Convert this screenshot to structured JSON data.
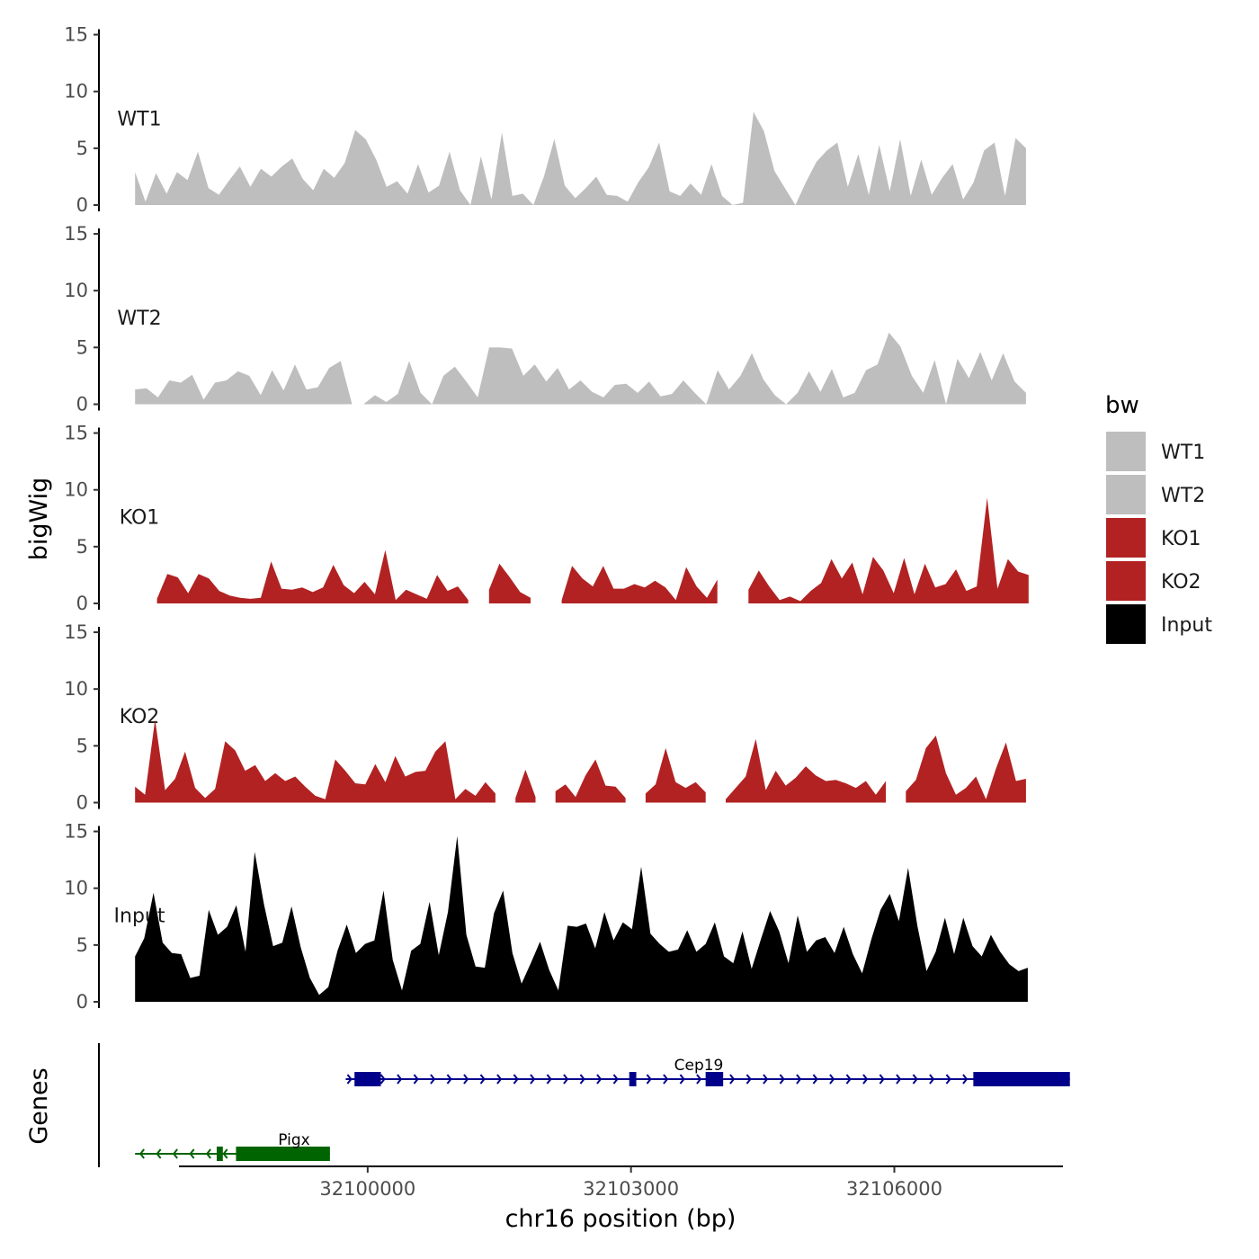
{
  "chart_data": {
    "type": "area",
    "ylabel": "bigWig",
    "xlabel": "chr16 position (bp)",
    "ylim": [
      0,
      15
    ],
    "yticks": [
      "0",
      "5",
      "10",
      "15"
    ],
    "x_range": [
      32096800,
      32108800
    ],
    "xticks": [
      {
        "value": 32100000,
        "label": "32100000"
      },
      {
        "value": 32103000,
        "label": "32103000"
      },
      {
        "value": 32106000,
        "label": "32106000"
      }
    ],
    "legend": {
      "title": "bw",
      "entries": [
        {
          "label": "WT1",
          "color": "#bebebe"
        },
        {
          "label": "WT2",
          "color": "#bebebe"
        },
        {
          "label": "KO1",
          "color": "#b22222"
        },
        {
          "label": "KO2",
          "color": "#b22222"
        },
        {
          "label": "Input",
          "color": "#000000"
        }
      ]
    },
    "tracks": [
      {
        "name": "WT1",
        "color": "#bebebe",
        "start": 32097350,
        "end": 32107500,
        "values": [
          2.9,
          0.3,
          2.8,
          1.0,
          2.9,
          2.2,
          4.7,
          1.5,
          0.9,
          2.2,
          3.4,
          1.6,
          3.2,
          2.5,
          3.4,
          4.1,
          2.3,
          1.3,
          3.2,
          2.4,
          3.7,
          6.6,
          5.8,
          4.0,
          1.6,
          2.1,
          1.0,
          3.6,
          1.1,
          1.7,
          4.7,
          1.3,
          0.0,
          4.3,
          0.5,
          6.4,
          0.8,
          1.0,
          0.0,
          2.5,
          5.8,
          1.7,
          0.6,
          1.5,
          2.5,
          0.9,
          0.8,
          0.3,
          2.0,
          3.3,
          5.5,
          1.2,
          0.8,
          1.9,
          0.9,
          3.6,
          0.8,
          0.0,
          0.2,
          8.2,
          6.5,
          3.0,
          1.5,
          0.0,
          2.0,
          3.8,
          4.8,
          5.5,
          1.6,
          4.5,
          0.9,
          5.3,
          1.2,
          5.8,
          0.8,
          4.0,
          0.9,
          2.4,
          3.6,
          0.5,
          2.0,
          4.8,
          5.5,
          0.8,
          5.9,
          5.0
        ]
      },
      {
        "name": "WT2",
        "color": "#bebebe",
        "start": 32097350,
        "end": 32107500,
        "values": [
          1.3,
          1.4,
          0.6,
          2.1,
          1.9,
          2.6,
          0.4,
          1.9,
          2.1,
          2.9,
          2.5,
          0.8,
          3.0,
          1.2,
          3.5,
          1.3,
          1.5,
          3.2,
          3.8,
          0.0,
          0.0,
          0.8,
          0.2,
          0.9,
          3.8,
          1.0,
          0.0,
          2.5,
          3.3,
          2.0,
          0.6,
          5.0,
          5.0,
          4.9,
          2.5,
          3.5,
          2.0,
          3.2,
          1.3,
          2.1,
          1.1,
          0.6,
          1.7,
          1.8,
          1.0,
          2.0,
          0.7,
          0.9,
          2.1,
          1.0,
          0.0,
          3.0,
          1.3,
          2.5,
          4.5,
          2.2,
          0.8,
          0.0,
          1.0,
          2.9,
          1.1,
          3.1,
          0.6,
          1.0,
          3.0,
          3.5,
          6.3,
          5.1,
          2.5,
          1.0,
          3.9,
          0.0,
          4.0,
          2.3,
          4.6,
          2.1,
          4.5,
          2.0,
          1.0
        ]
      },
      {
        "name": "KO1",
        "color": "#b22222",
        "start": 32097600,
        "end": 32107530,
        "values": [
          0.4,
          2.6,
          2.3,
          0.9,
          2.6,
          2.2,
          1.1,
          0.7,
          0.5,
          0.4,
          0.5,
          3.7,
          1.3,
          1.2,
          1.4,
          1.0,
          1.4,
          3.4,
          1.6,
          0.9,
          1.9,
          0.8,
          4.7,
          0.3,
          1.2,
          0.8,
          0.4,
          2.5,
          1.1,
          1.5,
          0.3,
          null,
          1.2,
          3.5,
          2.3,
          1.0,
          0.5,
          null,
          null,
          0.3,
          3.3,
          2.2,
          1.5,
          3.3,
          1.3,
          1.3,
          1.7,
          1.4,
          2.0,
          1.4,
          0.3,
          3.2,
          1.5,
          0.5,
          2.1,
          null,
          null,
          1.2,
          2.9,
          1.5,
          0.3,
          0.6,
          0.2,
          1.1,
          1.8,
          3.9,
          2.2,
          3.6,
          0.8,
          4.1,
          2.9,
          0.9,
          4.0,
          0.8,
          3.5,
          1.4,
          1.7,
          3.0,
          1.1,
          1.5,
          9.3,
          1.3,
          3.9,
          2.8,
          2.5
        ]
      },
      {
        "name": "KO2",
        "color": "#b22222",
        "start": 32097350,
        "end": 32107500,
        "values": [
          1.4,
          0.7,
          7.3,
          1.1,
          2.1,
          4.5,
          1.3,
          0.4,
          1.2,
          5.4,
          4.6,
          2.8,
          3.3,
          1.9,
          2.6,
          1.9,
          2.3,
          1.4,
          0.6,
          0.3,
          3.8,
          2.8,
          1.7,
          1.6,
          3.4,
          1.8,
          4.1,
          2.3,
          2.7,
          2.8,
          4.5,
          5.4,
          0.3,
          1.2,
          0.6,
          1.8,
          0.8,
          null,
          0.4,
          2.9,
          0.5,
          null,
          1.0,
          1.6,
          0.5,
          2.4,
          3.8,
          1.5,
          1.4,
          0.4,
          null,
          0.8,
          1.6,
          4.8,
          1.8,
          1.3,
          1.8,
          0.9,
          null,
          0.3,
          1.3,
          2.3,
          5.6,
          1.1,
          2.8,
          1.5,
          2.2,
          3.2,
          2.4,
          1.9,
          2.0,
          1.7,
          1.3,
          1.9,
          0.7,
          1.9,
          null,
          1.0,
          2.0,
          4.8,
          5.9,
          2.6,
          0.7,
          1.3,
          2.3,
          0.3,
          3.0,
          5.3,
          1.9,
          2.1
        ]
      },
      {
        "name": "Input",
        "color": "#000000",
        "start": 32097350,
        "end": 32107520,
        "values": [
          4.0,
          5.6,
          9.6,
          5.2,
          4.3,
          4.2,
          2.1,
          2.3,
          8.1,
          5.9,
          6.6,
          8.5,
          4.4,
          13.2,
          8.6,
          4.9,
          5.2,
          8.4,
          4.8,
          2.1,
          0.6,
          1.3,
          4.5,
          6.8,
          4.3,
          5.1,
          5.4,
          9.8,
          3.7,
          1.0,
          4.5,
          5.1,
          8.8,
          4.1,
          7.9,
          14.6,
          5.9,
          3.1,
          3.0,
          7.8,
          9.8,
          4.3,
          1.6,
          3.4,
          5.3,
          2.8,
          1.0,
          6.7,
          6.6,
          6.9,
          4.7,
          7.9,
          5.4,
          7.0,
          6.4,
          11.9,
          6.0,
          5.1,
          4.4,
          4.6,
          6.3,
          4.4,
          5.1,
          7.0,
          4.0,
          3.4,
          6.2,
          2.9,
          5.5,
          8.0,
          6.2,
          3.4,
          7.6,
          4.4,
          5.4,
          5.7,
          4.3,
          6.6,
          4.2,
          2.5,
          5.5,
          8.1,
          9.5,
          7.1,
          11.8,
          6.7,
          2.7,
          4.4,
          7.4,
          4.2,
          7.4,
          4.9,
          4.0,
          5.9,
          4.4,
          3.3,
          2.7,
          3.0
        ]
      }
    ],
    "genes": {
      "label": "Genes",
      "items": [
        {
          "name": "Cep19",
          "color": "#00008b",
          "strand": "+",
          "start": 32099750,
          "end": 32108000,
          "exons": [
            [
              32099850,
              32100150
            ],
            [
              32102980,
              32103060
            ],
            [
              32103850,
              32104050
            ],
            [
              32106900,
              32108000
            ]
          ]
        },
        {
          "name": "Pigx",
          "color": "#006400",
          "strand": "-",
          "start": 32097350,
          "end": 32099570,
          "exons": [
            [
              32098280,
              32098350
            ],
            [
              32098500,
              32099570
            ]
          ]
        }
      ]
    }
  }
}
